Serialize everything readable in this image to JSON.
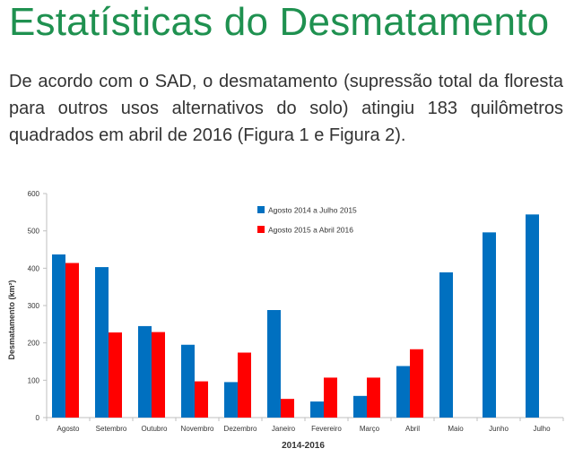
{
  "page": {
    "title": "Estatísticas do Desmatamento",
    "paragraph": "De acordo com o SAD, o desmatamento (supressão total da floresta para outros usos alternativos do solo) atingiu 183 quilômetros quadrados em abril de 2016 (Figura 1 e Figura 2)."
  },
  "chart_data": {
    "type": "bar",
    "title": "",
    "xlabel": "2014-2016",
    "ylabel": "Desmatamento (km²)",
    "ylim": [
      0,
      600
    ],
    "yticks": [
      0,
      100,
      200,
      300,
      400,
      500,
      600
    ],
    "grid": false,
    "legend_position": "top-center",
    "categories": [
      "Agosto",
      "Setembro",
      "Outubro",
      "Novembro",
      "Dezembro",
      "Janeiro",
      "Fevereiro",
      "Março",
      "Abril",
      "Maio",
      "Junho",
      "Julho"
    ],
    "series": [
      {
        "name": "Agosto 2014 a Julho 2015",
        "color": "#0070c0",
        "values": [
          437,
          403,
          245,
          195,
          95,
          288,
          43,
          58,
          138,
          389,
          496,
          544
        ]
      },
      {
        "name": "Agosto 2015 a Abril 2016",
        "color": "#ff0000",
        "values": [
          414,
          228,
          229,
          97,
          174,
          50,
          107,
          107,
          183,
          null,
          null,
          null
        ]
      }
    ]
  }
}
